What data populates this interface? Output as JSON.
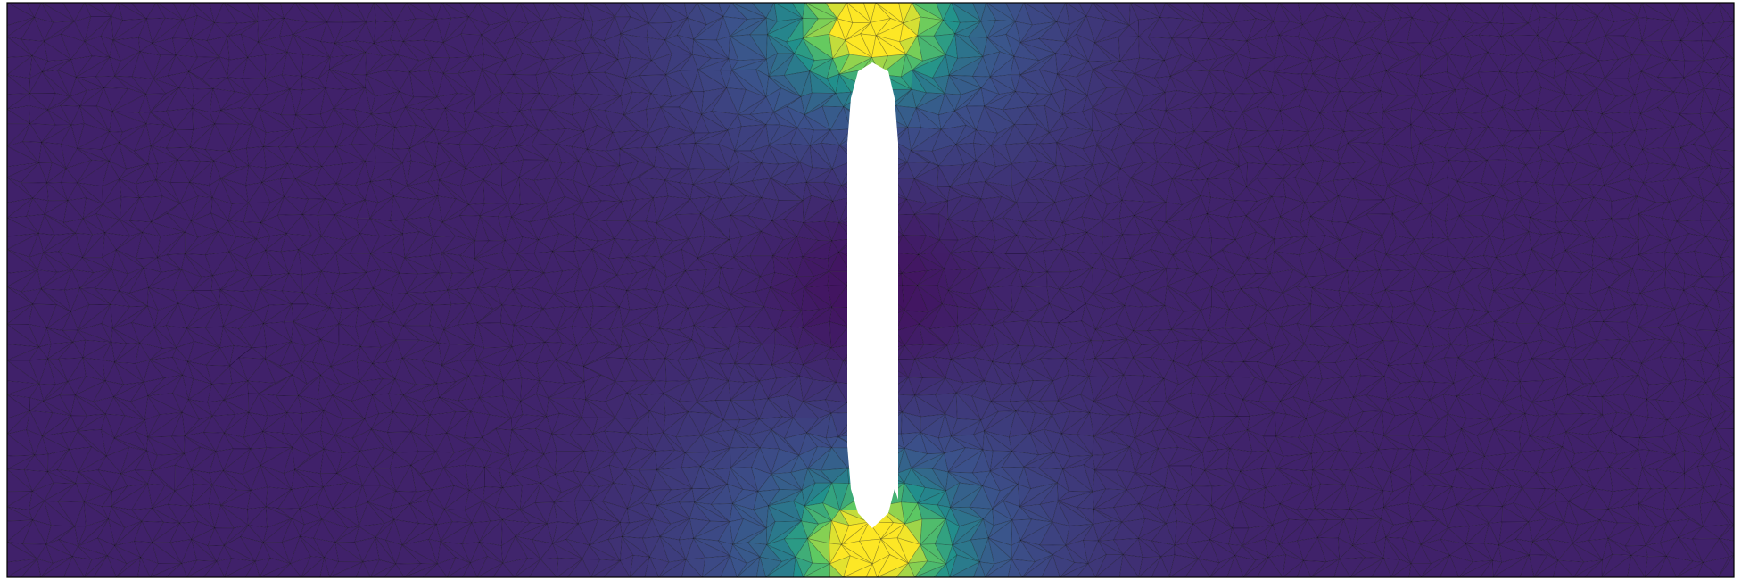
{
  "figure": {
    "kind": "finite-element-mesh-field-plot",
    "colormap": "viridis",
    "colormap_stops": [
      "#440154",
      "#3b528b",
      "#21918c",
      "#5ec962",
      "#fde725"
    ],
    "background_color": "#ffffff",
    "mesh_line_color": "#000000",
    "border_color": "#000000",
    "hole_fill": "#ffffff",
    "mesh_element_type": "triangle",
    "hole_shape": "slot",
    "hole_orientation": "vertical",
    "field_peak_locations": [
      "top-of-hole",
      "bottom-of-hole"
    ],
    "field_minimum_location": "hole-sides",
    "printed_text": []
  }
}
